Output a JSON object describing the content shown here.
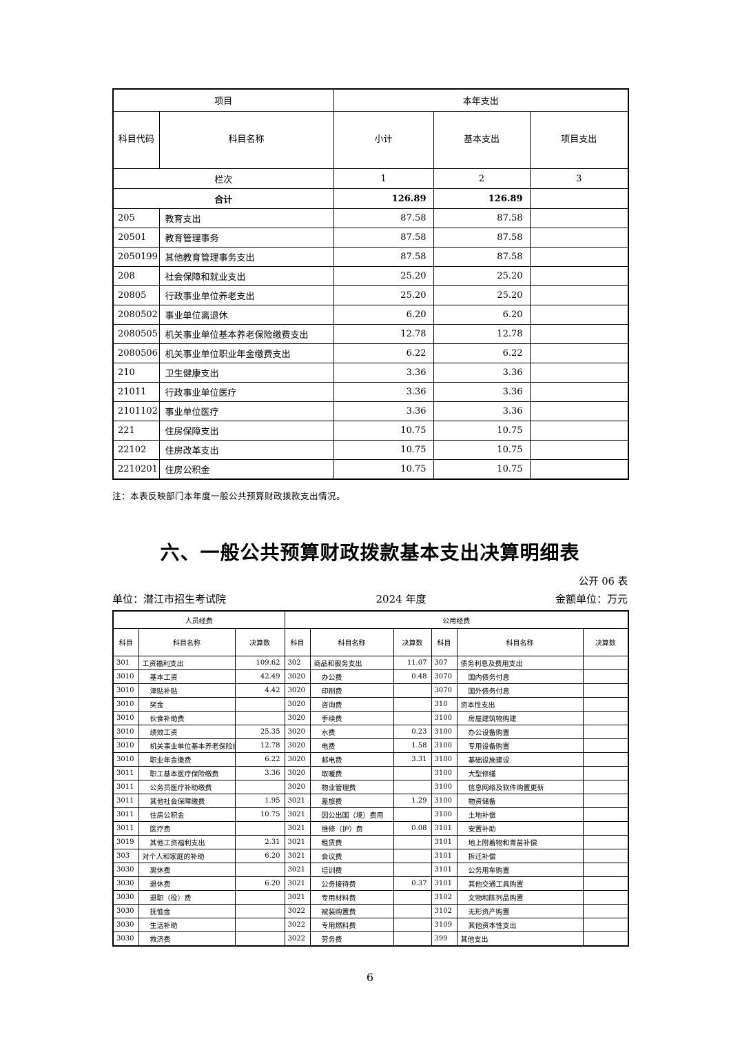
{
  "page": {
    "footer_page_number": "6"
  },
  "table1": {
    "header": {
      "group_item": "项目",
      "group_year": "本年支出",
      "code": "科目代码",
      "name": "科目名称",
      "subtotal": "小计",
      "basic": "基本支出",
      "project": "项目支出",
      "lanci": "栏次",
      "col1": "1",
      "col2": "2",
      "col3": "3"
    },
    "total": {
      "label": "合计",
      "subtotal": "126.89",
      "basic": "126.89",
      "project": ""
    },
    "rows": [
      {
        "code": "205",
        "name": "教育支出",
        "subtotal": "87.58",
        "basic": "87.58",
        "project": ""
      },
      {
        "code": "20501",
        "name": "教育管理事务",
        "subtotal": "87.58",
        "basic": "87.58",
        "project": ""
      },
      {
        "code": "2050199",
        "name": "其他教育管理事务支出",
        "subtotal": "87.58",
        "basic": "87.58",
        "project": ""
      },
      {
        "code": "208",
        "name": "社会保障和就业支出",
        "subtotal": "25.20",
        "basic": "25.20",
        "project": ""
      },
      {
        "code": "20805",
        "name": "行政事业单位养老支出",
        "subtotal": "25.20",
        "basic": "25.20",
        "project": ""
      },
      {
        "code": "2080502",
        "name": "事业单位离退休",
        "subtotal": "6.20",
        "basic": "6.20",
        "project": ""
      },
      {
        "code": "2080505",
        "name": "机关事业单位基本养老保险缴费支出",
        "subtotal": "12.78",
        "basic": "12.78",
        "project": ""
      },
      {
        "code": "2080506",
        "name": "机关事业单位职业年金缴费支出",
        "subtotal": "6.22",
        "basic": "6.22",
        "project": ""
      },
      {
        "code": "210",
        "name": "卫生健康支出",
        "subtotal": "3.36",
        "basic": "3.36",
        "project": ""
      },
      {
        "code": "21011",
        "name": "行政事业单位医疗",
        "subtotal": "3.36",
        "basic": "3.36",
        "project": ""
      },
      {
        "code": "2101102",
        "name": "事业单位医疗",
        "subtotal": "3.36",
        "basic": "3.36",
        "project": ""
      },
      {
        "code": "221",
        "name": "住房保障支出",
        "subtotal": "10.75",
        "basic": "10.75",
        "project": ""
      },
      {
        "code": "22102",
        "name": "住房改革支出",
        "subtotal": "10.75",
        "basic": "10.75",
        "project": ""
      },
      {
        "code": "2210201",
        "name": "住房公积金",
        "subtotal": "10.75",
        "basic": "10.75",
        "project": ""
      }
    ],
    "note": "注：本表反映部门本年度一般公共预算财政拨款支出情况。"
  },
  "section6": {
    "title": "六、一般公共预算财政拨款基本支出决算明细表",
    "table_label": "公开 06 表",
    "unit": "单位：潜江市招生考试院",
    "year": "2024 年度",
    "amount_unit": "金额单位：万元"
  },
  "table2": {
    "groups": {
      "personnel": "人员经费",
      "public": "公用经费"
    },
    "col_headers": {
      "code": "科目",
      "name": "科目名称",
      "value": "决算数"
    },
    "rows": [
      [
        {
          "code": "301",
          "name": "工资福利支出",
          "value": "109.62"
        },
        {
          "code": "302",
          "name": "商品和服务支出",
          "value": "11.07"
        },
        {
          "code": "307",
          "name": "债务利息及费用支出",
          "value": ""
        }
      ],
      [
        {
          "code": "3010",
          "name": "基本工资",
          "value": "42.49"
        },
        {
          "code": "3020",
          "name": "办公费",
          "value": "0.48"
        },
        {
          "code": "3070",
          "name": "国内债务付息",
          "value": ""
        }
      ],
      [
        {
          "code": "3010",
          "name": "津贴补贴",
          "value": "4.42"
        },
        {
          "code": "3020",
          "name": "印刷费",
          "value": ""
        },
        {
          "code": "3070",
          "name": "国外债务付息",
          "value": ""
        }
      ],
      [
        {
          "code": "3010",
          "name": "奖金",
          "value": ""
        },
        {
          "code": "3020",
          "name": "咨询费",
          "value": ""
        },
        {
          "code": "310",
          "name": "资本性支出",
          "value": ""
        }
      ],
      [
        {
          "code": "3010",
          "name": "伙食补助费",
          "value": ""
        },
        {
          "code": "3020",
          "name": "手续费",
          "value": ""
        },
        {
          "code": "3100",
          "name": "房屋建筑物购建",
          "value": ""
        }
      ],
      [
        {
          "code": "3010",
          "name": "绩效工资",
          "value": "25.35"
        },
        {
          "code": "3020",
          "name": "水费",
          "value": "0.23"
        },
        {
          "code": "3100",
          "name": "办公设备购置",
          "value": ""
        }
      ],
      [
        {
          "code": "3010",
          "name": "机关事业单位基本养老保险缴费",
          "value": "12.78"
        },
        {
          "code": "3020",
          "name": "电费",
          "value": "1.58"
        },
        {
          "code": "3100",
          "name": "专用设备购置",
          "value": ""
        }
      ],
      [
        {
          "code": "3010",
          "name": "职业年金缴费",
          "value": "6.22"
        },
        {
          "code": "3020",
          "name": "邮电费",
          "value": "3.31"
        },
        {
          "code": "3100",
          "name": "基础设施建设",
          "value": ""
        }
      ],
      [
        {
          "code": "3011",
          "name": "职工基本医疗保险缴费",
          "value": "3.36"
        },
        {
          "code": "3020",
          "name": "取暖费",
          "value": ""
        },
        {
          "code": "3100",
          "name": "大型修缮",
          "value": ""
        }
      ],
      [
        {
          "code": "3011",
          "name": "公务员医疗补助缴费",
          "value": ""
        },
        {
          "code": "3020",
          "name": "物业管理费",
          "value": ""
        },
        {
          "code": "3100",
          "name": "信息网络及软件购置更新",
          "value": ""
        }
      ],
      [
        {
          "code": "3011",
          "name": "其他社会保障缴费",
          "value": "1.95"
        },
        {
          "code": "3021",
          "name": "差旅费",
          "value": "1.29"
        },
        {
          "code": "3100",
          "name": "物资储备",
          "value": ""
        }
      ],
      [
        {
          "code": "3011",
          "name": "住房公积金",
          "value": "10.75"
        },
        {
          "code": "3021",
          "name": "因公出国（境）费用",
          "value": ""
        },
        {
          "code": "3100",
          "name": "土地补偿",
          "value": ""
        }
      ],
      [
        {
          "code": "3011",
          "name": "医疗费",
          "value": ""
        },
        {
          "code": "3021",
          "name": "维修（护）费",
          "value": "0.08"
        },
        {
          "code": "3101",
          "name": "安置补助",
          "value": ""
        }
      ],
      [
        {
          "code": "3019",
          "name": "其他工资福利支出",
          "value": "2.31"
        },
        {
          "code": "3021",
          "name": "租赁费",
          "value": ""
        },
        {
          "code": "3101",
          "name": "地上附着物和青苗补偿",
          "value": ""
        }
      ],
      [
        {
          "code": "303",
          "name": "对个人和家庭的补助",
          "value": "6.20"
        },
        {
          "code": "3021",
          "name": "会议费",
          "value": ""
        },
        {
          "code": "3101",
          "name": "拆迁补偿",
          "value": ""
        }
      ],
      [
        {
          "code": "3030",
          "name": "离休费",
          "value": ""
        },
        {
          "code": "3021",
          "name": "培训费",
          "value": ""
        },
        {
          "code": "3101",
          "name": "公务用车购置",
          "value": ""
        }
      ],
      [
        {
          "code": "3030",
          "name": "退休费",
          "value": "6.20"
        },
        {
          "code": "3021",
          "name": "公务接待费",
          "value": "0.37"
        },
        {
          "code": "3101",
          "name": "其他交通工具购置",
          "value": ""
        }
      ],
      [
        {
          "code": "3030",
          "name": "退职（役）费",
          "value": ""
        },
        {
          "code": "3021",
          "name": "专用材料费",
          "value": ""
        },
        {
          "code": "3102",
          "name": "文物和陈列品购置",
          "value": ""
        }
      ],
      [
        {
          "code": "3030",
          "name": "抚恤金",
          "value": ""
        },
        {
          "code": "3022",
          "name": "被装购置费",
          "value": ""
        },
        {
          "code": "3102",
          "name": "无形资产购置",
          "value": ""
        }
      ],
      [
        {
          "code": "3030",
          "name": "生活补助",
          "value": ""
        },
        {
          "code": "3022",
          "name": "专用燃料费",
          "value": ""
        },
        {
          "code": "3109",
          "name": "其他资本性支出",
          "value": ""
        }
      ],
      [
        {
          "code": "3030",
          "name": "救济费",
          "value": ""
        },
        {
          "code": "3022",
          "name": "劳务费",
          "value": ""
        },
        {
          "code": "399",
          "name": "其他支出",
          "value": ""
        }
      ]
    ]
  }
}
